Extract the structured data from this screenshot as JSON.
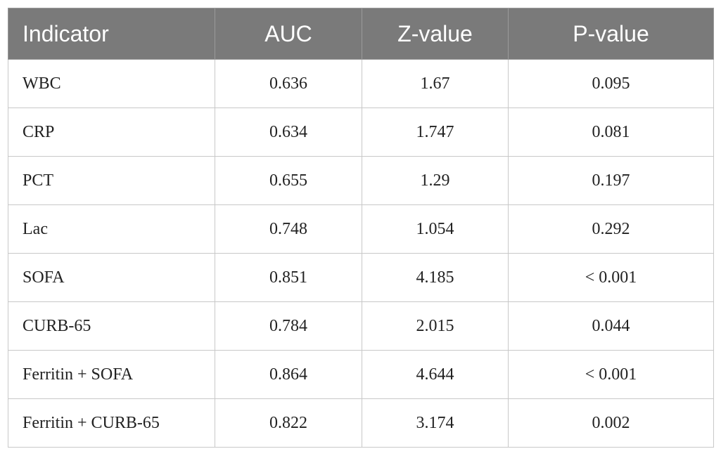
{
  "table": {
    "headers": [
      "Indicator",
      "AUC",
      "Z-value",
      "P-value"
    ],
    "rows": [
      [
        "WBC",
        "0.636",
        "1.67",
        "0.095"
      ],
      [
        "CRP",
        "0.634",
        "1.747",
        "0.081"
      ],
      [
        "PCT",
        "0.655",
        "1.29",
        "0.197"
      ],
      [
        "Lac",
        "0.748",
        "1.054",
        "0.292"
      ],
      [
        "SOFA",
        "0.851",
        "4.185",
        "< 0.001"
      ],
      [
        "CURB-65",
        "0.784",
        "2.015",
        "0.044"
      ],
      [
        "Ferritin + SOFA",
        "0.864",
        "4.644",
        "< 0.001"
      ],
      [
        "Ferritin + CURB-65",
        "0.822",
        "3.174",
        "0.002"
      ]
    ]
  },
  "colors": {
    "header_bg": "#7a7a7a",
    "header_text": "#ffffff",
    "border": "#c8c8c8"
  }
}
